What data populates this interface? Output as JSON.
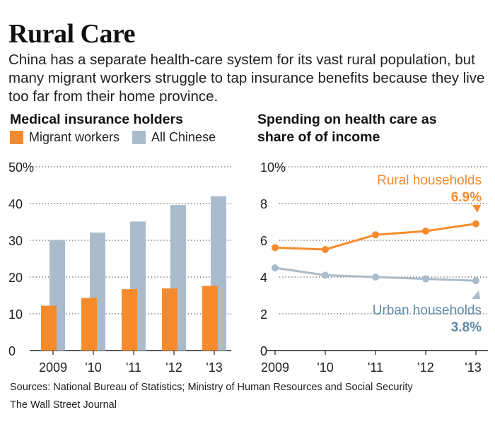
{
  "title": "Rural Care",
  "subtitle": "China has a separate health-care system for its vast rural population, but many migrant workers struggle to tap insurance benefits because they live too far from their home province.",
  "sources": "Sources: National Bureau of Statistics; Ministry of Human Resources and Social Security",
  "credit": "The Wall Street Journal",
  "colors": {
    "orange": "#f68b2c",
    "blue": "#aabccb",
    "urban_line": "#a9bccb",
    "urban_text": "#5f8aa6",
    "grid": "#555555"
  },
  "chart_data": [
    {
      "type": "bar",
      "title": "Medical insurance holders",
      "categories": [
        "2009",
        "'10",
        "'11",
        "'12",
        "'13"
      ],
      "series": [
        {
          "name": "Migrant workers",
          "values": [
            12.2,
            14.3,
            16.7,
            16.9,
            17.6
          ]
        },
        {
          "name": "All Chinese",
          "values": [
            30,
            32.1,
            35.1,
            39.6,
            42
          ]
        }
      ],
      "yticks": [
        "0",
        "10",
        "20",
        "30",
        "40",
        "50%"
      ],
      "ylim": [
        0,
        50
      ],
      "grid": true,
      "legend": "top"
    },
    {
      "type": "line",
      "title": "Spending on health care as share of of income",
      "categories": [
        "2009",
        "'10",
        "'11",
        "'12",
        "'13"
      ],
      "series": [
        {
          "name": "Rural households",
          "values": [
            5.6,
            5.5,
            6.3,
            6.5,
            6.9
          ],
          "end_label": "6.9%"
        },
        {
          "name": "Urban households",
          "values": [
            4.5,
            4.1,
            4.0,
            3.9,
            3.8
          ],
          "end_label": "3.8%"
        }
      ],
      "yticks": [
        "0",
        "2",
        "4",
        "6",
        "8",
        "10%"
      ],
      "ylim": [
        0,
        10
      ],
      "grid": true
    }
  ]
}
